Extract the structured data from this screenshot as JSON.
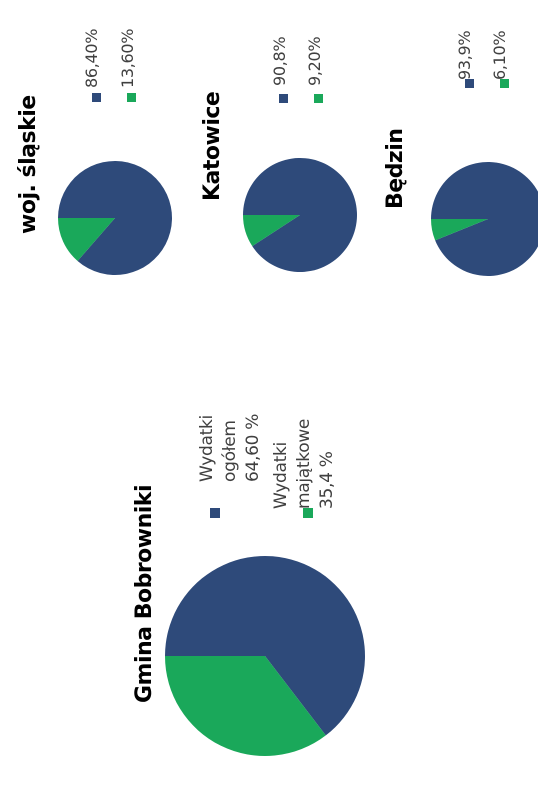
{
  "colors": {
    "blue": "#2e4a7a",
    "green": "#1aa85a"
  },
  "chart_data": [
    {
      "type": "pie",
      "title": "Gmina Bobrowniki",
      "slices": [
        {
          "label": "Wydatki ogółem 64,60 %",
          "value": 64.6,
          "color": "#2e4a7a"
        },
        {
          "label": "Wydatki majątkowe 35,4 %",
          "value": 35.4,
          "color": "#1aa85a"
        }
      ]
    },
    {
      "type": "pie",
      "title": "woj. śląskie",
      "slices": [
        {
          "label": "86,40%",
          "value": 86.4,
          "color": "#2e4a7a"
        },
        {
          "label": "13,60%",
          "value": 13.6,
          "color": "#1aa85a"
        }
      ]
    },
    {
      "type": "pie",
      "title": "Katowice",
      "slices": [
        {
          "label": "90,8%",
          "value": 90.8,
          "color": "#2e4a7a"
        },
        {
          "label": "9,20%",
          "value": 9.2,
          "color": "#1aa85a"
        }
      ]
    },
    {
      "type": "pie",
      "title": "Będzin",
      "slices": [
        {
          "label": "93,9%",
          "value": 93.9,
          "color": "#2e4a7a"
        },
        {
          "label": "6,10%",
          "value": 6.1,
          "color": "#1aa85a"
        }
      ]
    }
  ],
  "big_legend": {
    "item1_lines": [
      "Wydatki",
      "ogółem",
      "64,60 %"
    ],
    "item2_lines": [
      "Wydatki",
      "majątkowe",
      "35,4 %"
    ]
  }
}
